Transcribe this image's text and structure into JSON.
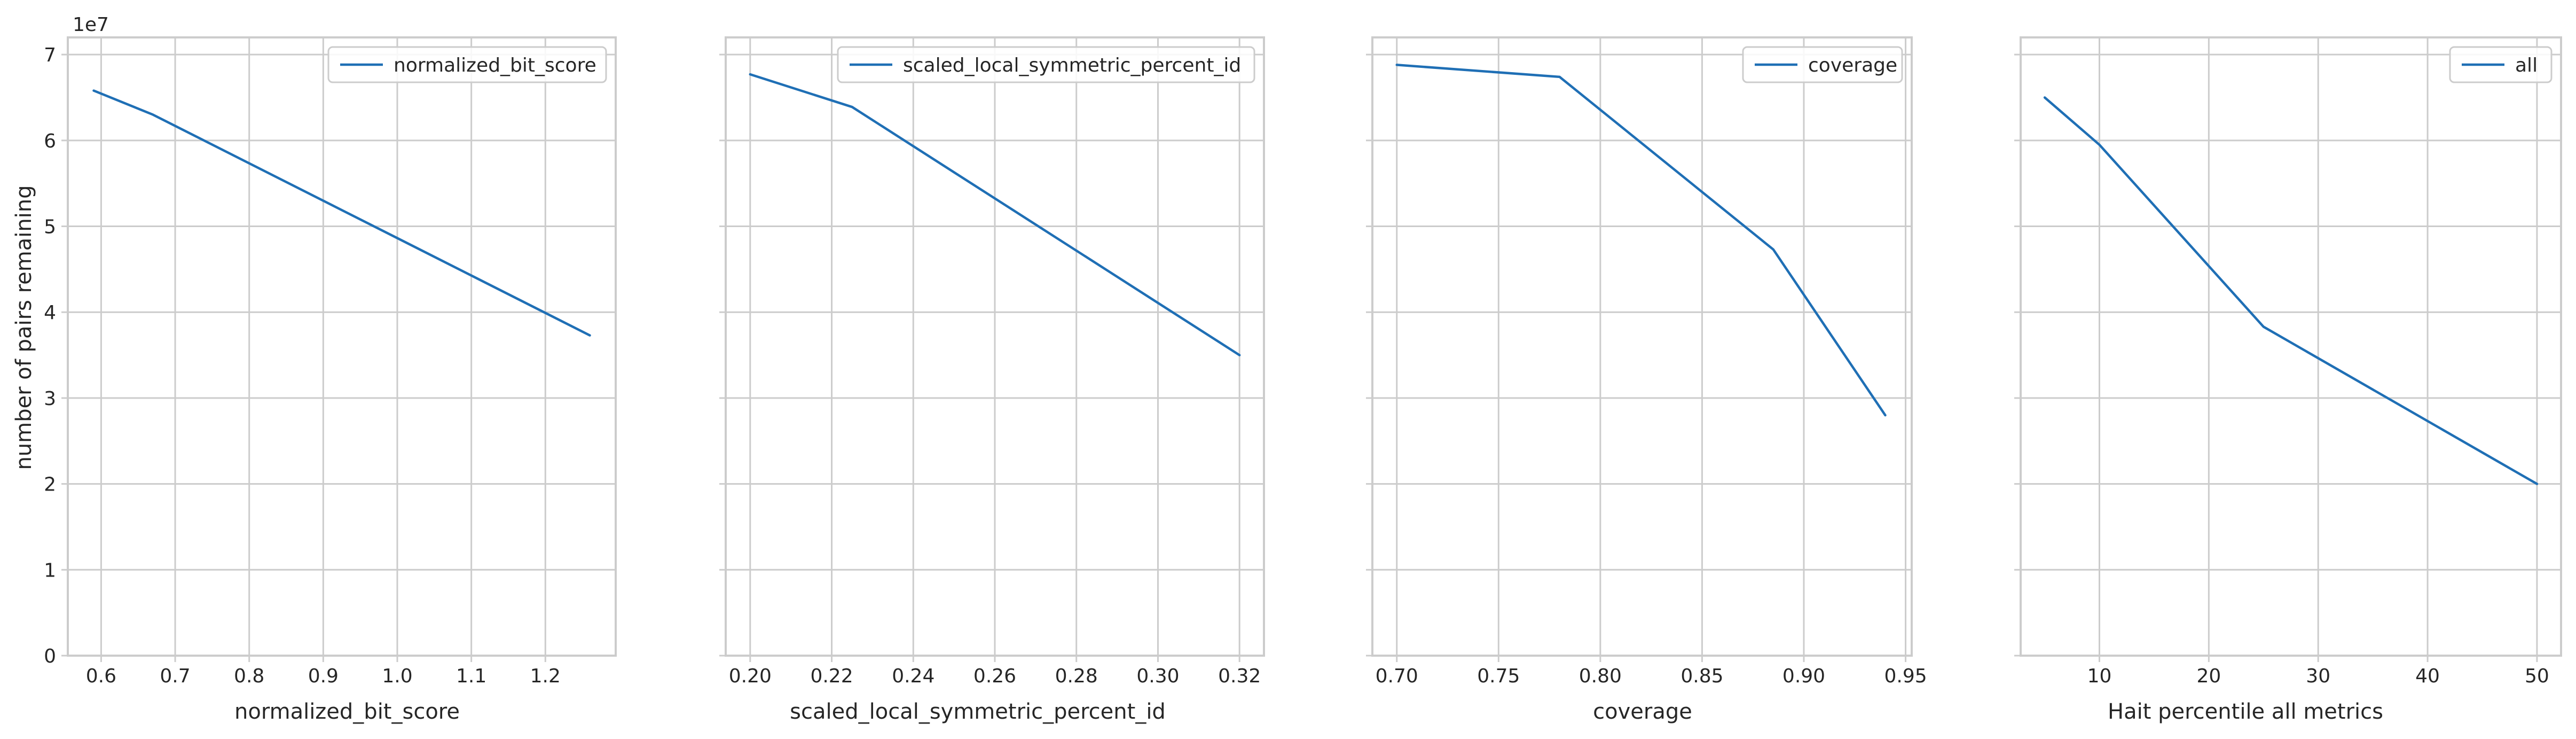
{
  "colors": {
    "series": "#1f6fb5",
    "grid": "#cccccc",
    "spine": "#cccccc",
    "text": "#262626",
    "background": "#ffffff"
  },
  "shared_y": {
    "label": "number of pairs remaining",
    "exponent_label": "1e7",
    "ticks": [
      0,
      1,
      2,
      3,
      4,
      5,
      6,
      7
    ]
  },
  "chart_data": [
    {
      "type": "line",
      "xlabel": "normalized_bit_score",
      "ylabel": "number of pairs remaining",
      "y_unit_scale": "1e7",
      "xlim": [
        0.555,
        1.295
      ],
      "ylim": [
        0,
        7.2
      ],
      "xticks": [
        0.6,
        0.7,
        0.8,
        0.9,
        1.0,
        1.1,
        1.2
      ],
      "xtick_labels": [
        "0.6",
        "0.7",
        "0.8",
        "0.9",
        "1.0",
        "1.1",
        "1.2"
      ],
      "yticks": [
        0,
        1,
        2,
        3,
        4,
        5,
        6,
        7
      ],
      "grid": true,
      "legend_position": "upper-right",
      "series": [
        {
          "name": "normalized_bit_score",
          "x": [
            0.59,
            0.67,
            1.26
          ],
          "y": [
            6.58,
            6.3,
            3.73
          ]
        }
      ]
    },
    {
      "type": "line",
      "xlabel": "scaled_local_symmetric_percent_id",
      "xlim": [
        0.194,
        0.326
      ],
      "ylim": [
        0,
        7.2
      ],
      "xticks": [
        0.2,
        0.22,
        0.24,
        0.26,
        0.28,
        0.3,
        0.32
      ],
      "xtick_labels": [
        "0.20",
        "0.22",
        "0.24",
        "0.26",
        "0.28",
        "0.30",
        "0.32"
      ],
      "yticks": [
        0,
        1,
        2,
        3,
        4,
        5,
        6,
        7
      ],
      "grid": true,
      "legend_position": "upper-right",
      "series": [
        {
          "name": "scaled_local_symmetric_percent_id",
          "x": [
            0.2,
            0.225,
            0.32
          ],
          "y": [
            6.77,
            6.39,
            3.5
          ]
        }
      ]
    },
    {
      "type": "line",
      "xlabel": "coverage",
      "xlim": [
        0.688,
        0.953
      ],
      "ylim": [
        0,
        7.2
      ],
      "xticks": [
        0.7,
        0.75,
        0.8,
        0.85,
        0.9,
        0.95
      ],
      "xtick_labels": [
        "0.70",
        "0.75",
        "0.80",
        "0.85",
        "0.90",
        "0.95"
      ],
      "yticks": [
        0,
        1,
        2,
        3,
        4,
        5,
        6,
        7
      ],
      "grid": true,
      "legend_position": "upper-right",
      "series": [
        {
          "name": "coverage",
          "x": [
            0.7,
            0.78,
            0.885,
            0.94
          ],
          "y": [
            6.88,
            6.74,
            4.73,
            2.8
          ]
        }
      ]
    },
    {
      "type": "line",
      "xlabel": "Hait percentile all metrics",
      "xlim": [
        2.8,
        52.2
      ],
      "ylim": [
        0,
        7.2
      ],
      "xticks": [
        10,
        20,
        30,
        40,
        50
      ],
      "xtick_labels": [
        "10",
        "20",
        "30",
        "40",
        "50"
      ],
      "yticks": [
        0,
        1,
        2,
        3,
        4,
        5,
        6,
        7
      ],
      "grid": true,
      "legend_position": "upper-right",
      "series": [
        {
          "name": "all",
          "x": [
            5,
            10,
            25,
            50
          ],
          "y": [
            6.5,
            5.95,
            3.83,
            2.0
          ]
        }
      ]
    }
  ]
}
